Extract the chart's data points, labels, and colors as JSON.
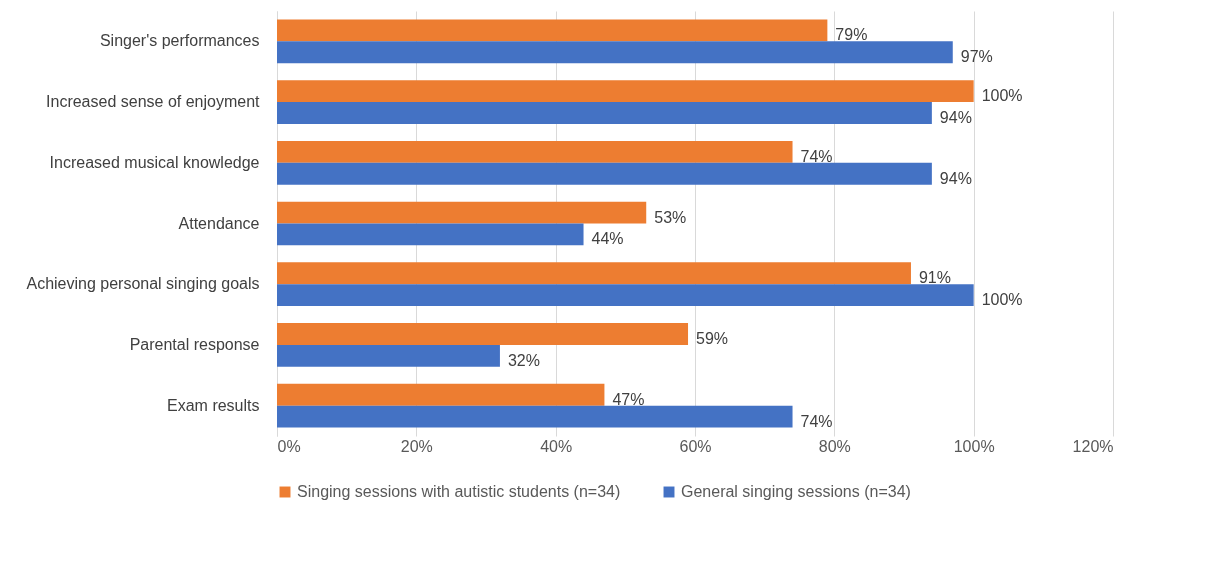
{
  "chart_data": {
    "type": "bar",
    "orientation": "horizontal",
    "categories": [
      "Singer's performances",
      "Increased sense of enjoyment",
      "Increased musical knowledge",
      "Attendance",
      "Achieving personal singing goals",
      "Parental response",
      "Exam results"
    ],
    "series": [
      {
        "name": "Singing sessions with autistic students (n=34)",
        "color": "#ed7d31",
        "values": [
          79,
          100,
          74,
          53,
          91,
          59,
          47
        ],
        "value_labels": [
          "79%",
          "100%",
          "74%",
          "53%",
          "91%",
          "59%",
          "47%"
        ]
      },
      {
        "name": "General singing sessions (n=34)",
        "color": "#4472c4",
        "values": [
          97,
          94,
          94,
          44,
          100,
          32,
          74
        ],
        "value_labels": [
          "97%",
          "94%",
          "94%",
          "44%",
          "100%",
          "32%",
          "74%"
        ]
      }
    ],
    "xlim": [
      0,
      120
    ],
    "xticks": [
      {
        "value": 0,
        "label": "0%"
      },
      {
        "value": 20,
        "label": "20%"
      },
      {
        "value": 40,
        "label": "40%"
      },
      {
        "value": 60,
        "label": "60%"
      },
      {
        "value": 80,
        "label": "80%"
      },
      {
        "value": 100,
        "label": "100%"
      },
      {
        "value": 120,
        "label": "120%"
      }
    ],
    "grid": "x",
    "legend": "bottom"
  }
}
